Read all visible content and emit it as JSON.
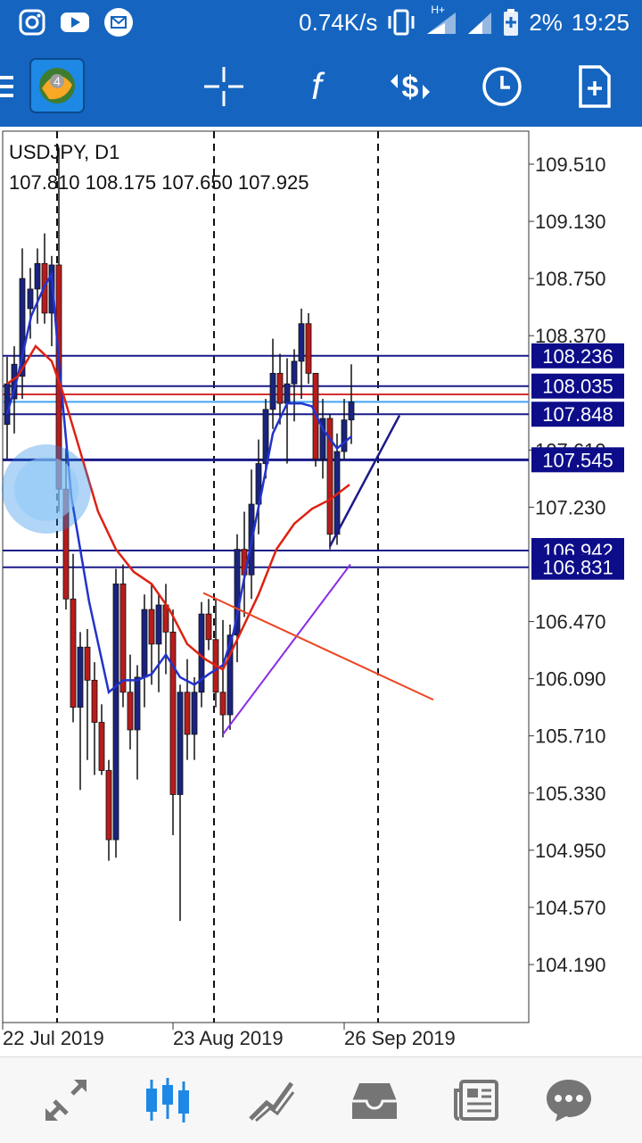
{
  "status_bar": {
    "left_icons": [
      "instagram-icon",
      "youtube-icon",
      "mail-icon"
    ],
    "net_speed": "0.74K/s",
    "network_label": "H+",
    "battery": "2%",
    "time": "19:25"
  },
  "toolbar": {
    "buttons": [
      "menu-icon",
      "metatrader-logo",
      "crosshair-icon",
      "function-icon",
      "symbol-change-icon",
      "timeframe-icon",
      "new-order-icon"
    ]
  },
  "chart": {
    "symbol_line": "USDJPY, D1",
    "ohlc_line": "107.810 108.175 107.650 107.925",
    "price_ticks": [
      "109.510",
      "109.130",
      "108.750",
      "108.370",
      "107.610",
      "107.230",
      "106.470",
      "106.090",
      "105.710",
      "105.330",
      "104.950",
      "104.570",
      "104.190"
    ],
    "price_tags": [
      {
        "label": "108.236",
        "price": 108.236
      },
      {
        "label": "108.035",
        "price": 108.035
      },
      {
        "label": "107.848",
        "price": 107.848
      },
      {
        "label": "107.545",
        "price": 107.545
      },
      {
        "label": "106.942",
        "price": 106.942
      },
      {
        "label": "106.831",
        "price": 106.831
      }
    ],
    "date_labels": [
      "22 Jul 2019",
      "23 Aug 2019",
      "26 Sep 2019"
    ],
    "colors": {
      "bull": "#1a237e",
      "bear": "#b71c1c",
      "ma_fast": "#2233cc",
      "ma_slow": "#dd2211",
      "hline": "#1a1a8a",
      "hline_red": "#d32f2f",
      "hline_light": "#42a5f5",
      "trend_purple": "#8a2be2",
      "trend_orange": "#ee4422",
      "tag_bg": "#0d0d8a"
    }
  },
  "bottom_nav": [
    "quotes-icon",
    "chart-icon",
    "trade-icon",
    "history-icon",
    "news-icon",
    "messages-icon"
  ]
}
